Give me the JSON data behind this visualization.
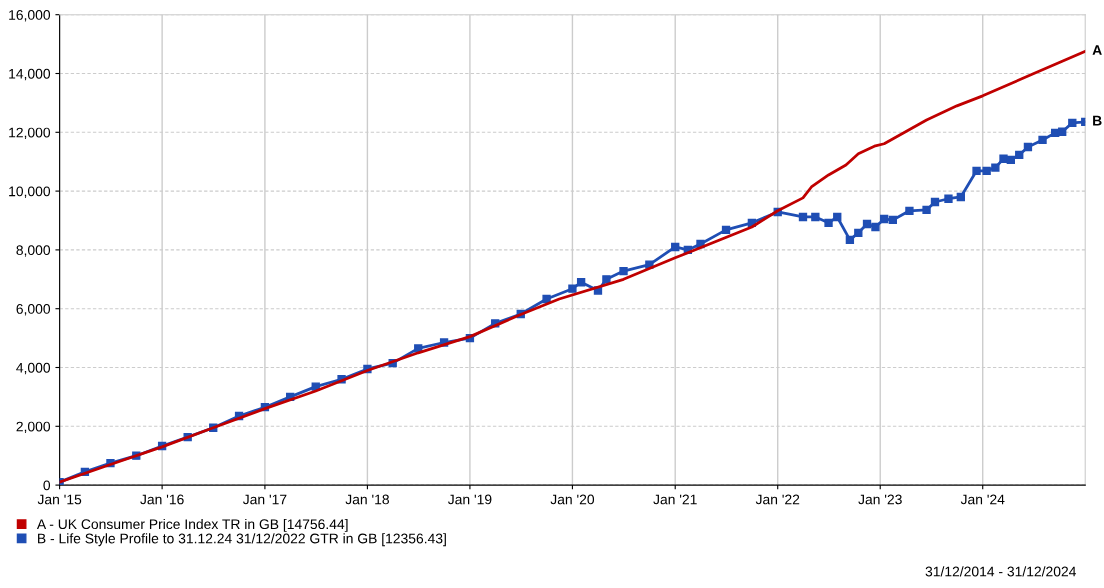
{
  "chart_data": {
    "type": "line",
    "x": [
      "2015-01-01",
      "2015-07-01",
      "2016-01-01",
      "2016-07-01",
      "2017-01-01",
      "2017-07-01",
      "2018-01-01",
      "2018-07-01",
      "2019-01-01",
      "2019-07-01",
      "2019-11-15",
      "2020-07-01",
      "2021-01-01",
      "2021-10-01",
      "2022-01-01",
      "2022-04-01",
      "2022-05-01",
      "2022-07-01",
      "2022-09-01",
      "2022-10-15",
      "2022-12-15",
      "2023-01-15",
      "2023-06-15",
      "2023-10-01",
      "2024-01-01",
      "2024-07-01",
      "2024-12-31"
    ],
    "series": [
      {
        "name": "A - UK Consumer Price Index TR in GB [14756.44]",
        "color": "#c00000",
        "values": [
          100,
          700,
          1300,
          1950,
          2600,
          3200,
          3900,
          4500,
          5050,
          5800,
          6330,
          7000,
          7730,
          8780,
          9330,
          9770,
          10140,
          10550,
          10890,
          11270,
          11540,
          11610,
          12420,
          12900,
          13240,
          14000,
          14756
        ]
      },
      {
        "name": "B - Life Style Profile to 31.12.24 31/12/2022 GTR in GB [12356.43]",
        "color": "#1f4eb4",
        "marker": "square",
        "x": [
          "2015-01-01",
          "2015-04-01",
          "2015-07-01",
          "2015-10-01",
          "2016-01-01",
          "2016-04-01",
          "2016-07-01",
          "2016-10-01",
          "2017-01-01",
          "2017-04-01",
          "2017-07-01",
          "2017-10-01",
          "2018-01-01",
          "2018-04-01",
          "2018-07-01",
          "2018-10-01",
          "2019-01-01",
          "2019-04-01",
          "2019-07-01",
          "2019-10-01",
          "2020-01-01",
          "2020-02-01",
          "2020-04-01",
          "2020-05-01",
          "2020-07-01",
          "2020-10-01",
          "2021-01-01",
          "2021-02-15",
          "2021-04-01",
          "2021-07-01",
          "2021-10-01",
          "2022-01-01",
          "2022-04-01",
          "2022-05-15",
          "2022-07-01",
          "2022-08-01",
          "2022-09-15",
          "2022-10-15",
          "2022-11-15",
          "2022-12-15",
          "2023-01-15",
          "2023-02-15",
          "2023-04-15",
          "2023-06-15",
          "2023-07-15",
          "2023-09-01",
          "2023-10-15",
          "2023-12-10",
          "2024-01-15",
          "2024-02-15",
          "2024-03-15",
          "2024-04-10",
          "2024-05-10",
          "2024-06-10",
          "2024-08-01",
          "2024-09-15",
          "2024-10-10",
          "2024-11-15",
          "2024-12-31"
        ],
        "values": [
          100,
          450,
          750,
          1000,
          1330,
          1630,
          1950,
          2350,
          2650,
          3000,
          3350,
          3600,
          3950,
          4150,
          4650,
          4850,
          5000,
          5500,
          5820,
          6330,
          6680,
          6900,
          6620,
          7000,
          7280,
          7500,
          8100,
          8000,
          8200,
          8680,
          8920,
          9290,
          9120,
          9120,
          8920,
          9120,
          8340,
          8580,
          8880,
          8780,
          9050,
          9020,
          9330,
          9360,
          9630,
          9740,
          9800,
          10690,
          10690,
          10800,
          11100,
          11060,
          11230,
          11500,
          11740,
          11980,
          12020,
          12320,
          12356
        ]
      }
    ],
    "xlim": [
      "2015-01-01",
      "2024-12-31"
    ],
    "xticks": [
      {
        "value": "2015-01-01",
        "label": "Jan '15"
      },
      {
        "value": "2016-01-01",
        "label": "Jan '16"
      },
      {
        "value": "2017-01-01",
        "label": "Jan '17"
      },
      {
        "value": "2018-01-01",
        "label": "Jan '18"
      },
      {
        "value": "2019-01-01",
        "label": "Jan '19"
      },
      {
        "value": "2020-01-01",
        "label": "Jan '20"
      },
      {
        "value": "2021-01-01",
        "label": "Jan '21"
      },
      {
        "value": "2022-01-01",
        "label": "Jan '22"
      },
      {
        "value": "2023-01-01",
        "label": "Jan '23"
      },
      {
        "value": "2024-01-01",
        "label": "Jan '24"
      }
    ],
    "ylim": [
      0,
      16000
    ],
    "yticks": [
      0,
      {
        "value": 2000,
        "label": "2,000"
      },
      {
        "value": 4000,
        "label": "4,000"
      },
      {
        "value": 6000,
        "label": "6,000"
      },
      {
        "value": 8000,
        "label": "8,000"
      },
      {
        "value": 10000,
        "label": "10,000"
      },
      {
        "value": 12000,
        "label": "12,000"
      },
      {
        "value": 14000,
        "label": "14,000"
      },
      {
        "value": 16000,
        "label": "16,000"
      }
    ],
    "grid": true,
    "legend": "bottom left",
    "annotations": [
      {
        "text": "A",
        "x": "2024-12-31",
        "y": 14756
      },
      {
        "text": "B",
        "x": "2024-12-31",
        "y": 12356
      },
      "31/12/2014 - 31/12/2024"
    ]
  }
}
